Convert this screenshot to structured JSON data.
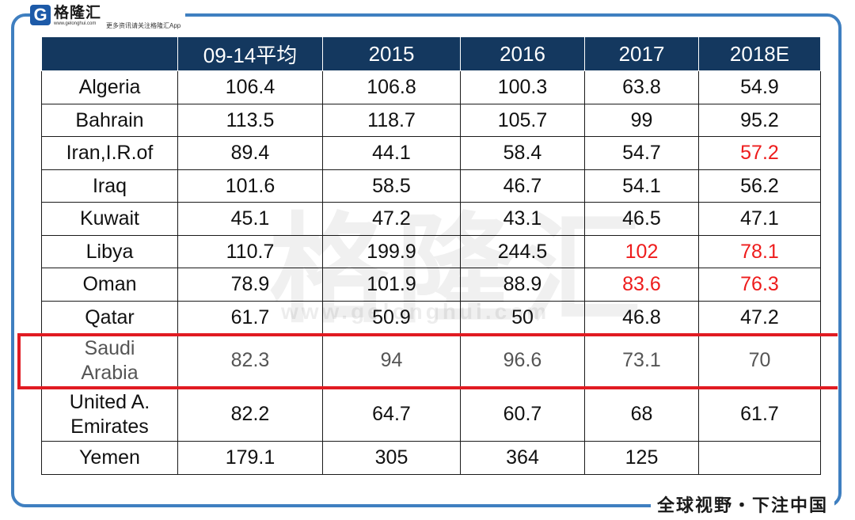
{
  "brand": {
    "logo_letter": "G",
    "name": "格隆汇",
    "url": "www.gelonghui.com",
    "tagline": "更多资讯请关注格隆汇App",
    "watermark": "格隆汇",
    "watermark_url": "www.gelonghui.com",
    "slogan": "全球视野・下注中国"
  },
  "table": {
    "headers": [
      "",
      "09-14平均",
      "2015",
      "2016",
      "2017",
      "2018E"
    ],
    "rows": [
      {
        "country": "Algeria",
        "values": [
          "106.4",
          "106.8",
          "100.3",
          "63.8",
          "54.9"
        ]
      },
      {
        "country": "Bahrain",
        "values": [
          "113.5",
          "118.7",
          "105.7",
          "99",
          "95.2"
        ]
      },
      {
        "country": "Iran,I.R.of",
        "values": [
          "89.4",
          "44.1",
          "58.4",
          "54.7",
          "57.2"
        ]
      },
      {
        "country": "Iraq",
        "values": [
          "101.6",
          "58.5",
          "46.7",
          "54.1",
          "56.2"
        ]
      },
      {
        "country": "Kuwait",
        "values": [
          "45.1",
          "47.2",
          "43.1",
          "46.5",
          "47.1"
        ]
      },
      {
        "country": "Libya",
        "values": [
          "110.7",
          "199.9",
          "244.5",
          "102",
          "78.1"
        ]
      },
      {
        "country": "Oman",
        "values": [
          "78.9",
          "101.9",
          "88.9",
          "83.6",
          "76.3"
        ]
      },
      {
        "country": "Qatar",
        "values": [
          "61.7",
          "50.9",
          "50",
          "46.8",
          "47.2"
        ]
      },
      {
        "country_line1": "Saudi",
        "country_line2": "Arabia",
        "values": [
          "82.3",
          "94",
          "96.6",
          "73.1",
          "70"
        ]
      },
      {
        "country_line1": "United A.",
        "country_line2": "Emirates",
        "values": [
          "82.2",
          "64.7",
          "60.7",
          "68",
          "61.7"
        ]
      },
      {
        "country": "Yemen",
        "values": [
          "179.1",
          "305",
          "364",
          "125",
          ""
        ]
      }
    ]
  },
  "colors": {
    "header_bg": "#14385f",
    "highlight_red": "#e11b22",
    "value_red": "#ee1c1c",
    "frame_blue": "#3f7fc0"
  }
}
